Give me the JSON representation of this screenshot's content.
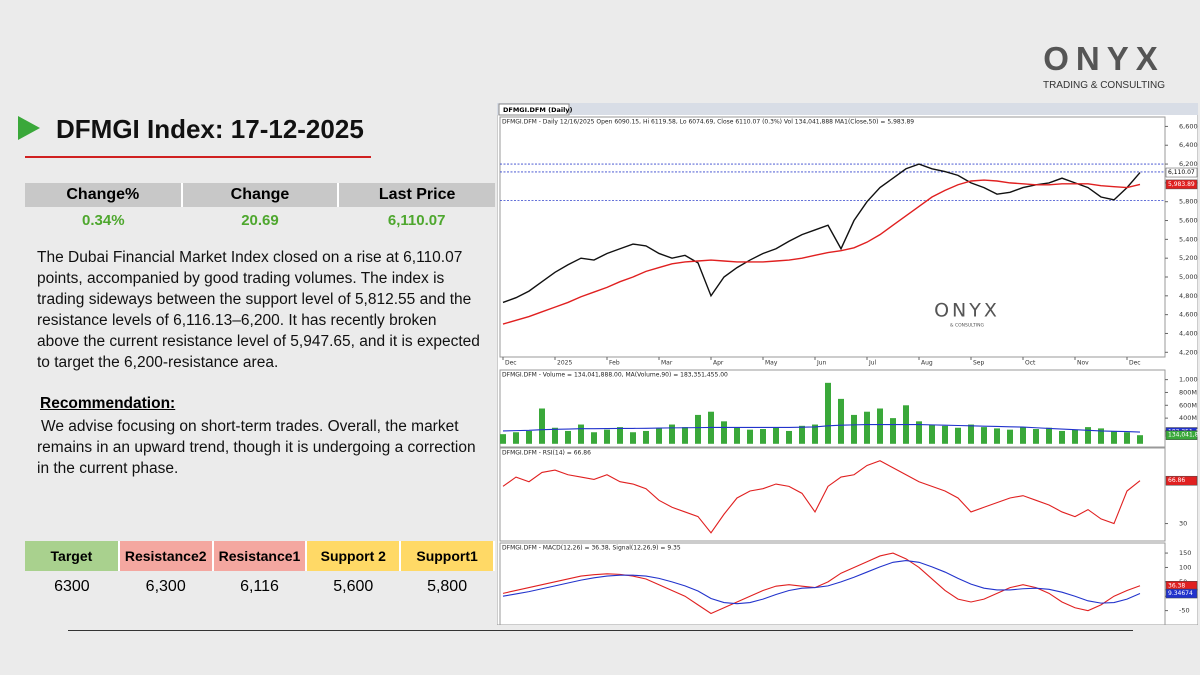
{
  "logo": {
    "name": "ONYX",
    "tagline": "TRADING & CONSULTING"
  },
  "header": {
    "title": "DFMGI Index: 17-12-2025"
  },
  "summary_table": {
    "columns": [
      "Change%",
      "Change",
      "Last Price"
    ],
    "row": [
      "0.34%",
      "20.69",
      "6,110.07"
    ]
  },
  "summary": "The Dubai Financial Market Index closed on a rise at 6,110.07 points, accompanied by good trading volumes. The index is trading sideways between the support level of 5,812.55 and the resistance levels of 6,116.13–6,200. It has recently broken above the current resistance level of 5,947.65, and it is expected to target the 6,200-resistance area.",
  "recommendation": {
    "heading": "Recommendation:",
    "text": "We advise focusing on short-term trades. Overall, the market remains in an upward trend, though it is undergoing a correction in the current phase."
  },
  "levels_table": {
    "columns": [
      "Target",
      "Resistance2",
      "Resistance1",
      "Support 2",
      "Support1"
    ],
    "row": [
      "6300",
      "6,300",
      "6,116",
      "5,600",
      "5,800"
    ],
    "colors": [
      "#a9d18e",
      "#f4a7a0",
      "#f4a7a0",
      "#ffd966",
      "#ffd966"
    ]
  },
  "chart_tab": "DFMGI.DFM (Daily)",
  "chart_data": [
    {
      "type": "line",
      "title": "DFMGI.DFM - Daily 12/16/2025 Open 6090.15, Hi 6119.58, Lo 6074.69, Close 6110.07 (0.3%) Vol 134,041,888 MA1(Close,50) = 5,983.89",
      "categories": [
        "Dec",
        null,
        null,
        null,
        "2025",
        null,
        null,
        null,
        "Feb",
        null,
        null,
        null,
        "Mar",
        null,
        null,
        null,
        "Apr",
        null,
        null,
        null,
        "May",
        null,
        null,
        null,
        "Jun",
        null,
        null,
        null,
        "Jul",
        null,
        null,
        null,
        "Aug",
        null,
        null,
        null,
        "Sep",
        null,
        null,
        null,
        "Oct",
        null,
        null,
        null,
        "Nov",
        null,
        null,
        null,
        "Dec",
        null
      ],
      "series": [
        {
          "color": "#111111",
          "values": [
            4730,
            4780,
            4850,
            4950,
            5050,
            5130,
            5200,
            5180,
            5250,
            5300,
            5350,
            5330,
            5250,
            5200,
            5230,
            5150,
            4800,
            5000,
            5100,
            5180,
            5250,
            5300,
            5380,
            5450,
            5500,
            5550,
            5300,
            5600,
            5800,
            5950,
            6050,
            6150,
            6200,
            6150,
            6120,
            6080,
            6000,
            5950,
            5880,
            5900,
            5950,
            5980,
            6000,
            6050,
            6000,
            5950,
            5850,
            5820,
            5950,
            6110.07
          ]
        },
        {
          "color": "#e02020",
          "values": [
            4500,
            4540,
            4580,
            4630,
            4680,
            4730,
            4790,
            4840,
            4890,
            4950,
            5000,
            5060,
            5100,
            5140,
            5160,
            5170,
            5180,
            5170,
            5160,
            5160,
            5160,
            5170,
            5180,
            5200,
            5230,
            5260,
            5280,
            5310,
            5370,
            5450,
            5550,
            5650,
            5750,
            5850,
            5920,
            5980,
            6020,
            6030,
            6020,
            6000,
            5990,
            5980,
            5980,
            5990,
            5990,
            5990,
            5970,
            5960,
            5950,
            5983.89
          ]
        }
      ],
      "hlines": [
        6200,
        6116.13,
        5812.55
      ],
      "hline_color": "#3344cc",
      "boxes": [
        {
          "value": 6110.07,
          "label": "6,110.07",
          "color": "#ffffff"
        },
        {
          "value": 5983.89,
          "label": "5,983.89",
          "color": "#e02020"
        }
      ],
      "watermark": [
        "ONYX",
        "& CONSULTING"
      ],
      "ylim": [
        4150,
        6700
      ],
      "yticks": [
        {
          "value": 4200,
          "label": "4,200"
        },
        {
          "value": 4400,
          "label": "4,400"
        },
        {
          "value": 4600,
          "label": "4,600"
        },
        {
          "value": 4800,
          "label": "4,800"
        },
        {
          "value": 5000,
          "label": "5,000"
        },
        {
          "value": 5200,
          "label": "5,200"
        },
        {
          "value": 5400,
          "label": "5,400"
        },
        {
          "value": 5600,
          "label": "5,600"
        },
        {
          "value": 5800,
          "label": "5,800"
        },
        {
          "value": 6000,
          "label": "6,000"
        },
        {
          "value": 6200,
          "label": "6,200"
        },
        {
          "value": 6400,
          "label": "6,400"
        },
        {
          "value": 6600,
          "label": "6,600"
        }
      ]
    },
    {
      "type": "bar",
      "title": "DFMGI.DFM - Volume = 134,041,888.00, MA(Volume,90) = 183,351,455.00",
      "series": [
        {
          "color": "#3aa83a",
          "values": [
            150,
            180,
            200,
            550,
            250,
            200,
            300,
            180,
            220,
            260,
            180,
            200,
            240,
            300,
            260,
            450,
            500,
            350,
            260,
            220,
            230,
            250,
            200,
            280,
            300,
            950,
            700,
            450,
            500,
            550,
            400,
            600,
            350,
            300,
            280,
            250,
            300,
            260,
            240,
            220,
            260,
            230,
            250,
            200,
            220,
            260,
            240,
            200,
            180,
            134.041888
          ]
        },
        {
          "color": "#2233cc",
          "values": [
            200,
            205,
            210,
            220,
            225,
            230,
            235,
            235,
            238,
            240,
            240,
            242,
            245,
            248,
            250,
            252,
            255,
            255,
            255,
            255,
            255,
            255,
            255,
            258,
            262,
            280,
            290,
            295,
            300,
            300,
            300,
            300,
            300,
            295,
            290,
            285,
            280,
            275,
            270,
            265,
            260,
            250,
            240,
            230,
            220,
            210,
            200,
            195,
            190,
            183.351455
          ]
        }
      ],
      "boxes": [
        {
          "value": 183.351455,
          "label": "183,351,4",
          "color": "#2233cc"
        },
        {
          "value": 134.041888,
          "label": "134,041,8",
          "color": "#3aa83a"
        }
      ],
      "ylim": [
        -50,
        1150
      ],
      "yticks": [
        {
          "value": 200,
          "label": "200M"
        },
        {
          "value": 400,
          "label": "400M"
        },
        {
          "value": 600,
          "label": "600M"
        },
        {
          "value": 800,
          "label": "800M"
        },
        {
          "value": 1000,
          "label": "1,000M"
        }
      ]
    },
    {
      "type": "line",
      "title": "DFMGI.DFM - RSI(14) = 66.86",
      "series": [
        {
          "color": "#e02020",
          "values": [
            62,
            70,
            66,
            74,
            76,
            72,
            70,
            68,
            72,
            66,
            64,
            60,
            50,
            44,
            40,
            36,
            22,
            38,
            52,
            58,
            60,
            64,
            62,
            56,
            40,
            62,
            70,
            72,
            80,
            84,
            78,
            72,
            66,
            62,
            58,
            52,
            40,
            44,
            48,
            52,
            54,
            50,
            46,
            40,
            36,
            42,
            34,
            30,
            58,
            66.86
          ]
        }
      ],
      "boxes": [
        {
          "value": 66.86,
          "label": "66.86",
          "color": "#e02020"
        }
      ],
      "ylim": [
        15,
        95
      ],
      "yticks": [
        30
      ]
    },
    {
      "type": "line",
      "title": "DFMGI.DFM - MACD(12,26) = 36.38, Signal(12,26,9) = 9.35",
      "series": [
        {
          "color": "#e02020",
          "values": [
            10,
            20,
            30,
            40,
            50,
            60,
            70,
            75,
            78,
            76,
            70,
            60,
            40,
            20,
            0,
            -30,
            -60,
            -40,
            -20,
            0,
            20,
            35,
            40,
            35,
            30,
            50,
            80,
            100,
            120,
            140,
            150,
            130,
            100,
            60,
            20,
            -10,
            -20,
            -10,
            10,
            30,
            40,
            30,
            10,
            -20,
            -40,
            -50,
            -30,
            0,
            20,
            36.38
          ]
        },
        {
          "color": "#2233cc",
          "values": [
            0,
            8,
            16,
            26,
            36,
            46,
            56,
            64,
            70,
            73,
            73,
            70,
            62,
            50,
            36,
            18,
            -8,
            -22,
            -26,
            -22,
            -10,
            6,
            20,
            28,
            30,
            36,
            50,
            66,
            84,
            102,
            118,
            124,
            118,
            102,
            84,
            62,
            42,
            28,
            22,
            22,
            26,
            28,
            24,
            14,
            0,
            -16,
            -24,
            -22,
            -10,
            9.35
          ]
        }
      ],
      "boxes": [
        {
          "value": 36.38,
          "label": "36.38",
          "color": "#e02020"
        },
        {
          "value": 9.34674,
          "label": "9.34674",
          "color": "#2233cc"
        }
      ],
      "ylim": [
        -100,
        185
      ],
      "yticks": [
        -50,
        0,
        50,
        100,
        150
      ]
    }
  ]
}
